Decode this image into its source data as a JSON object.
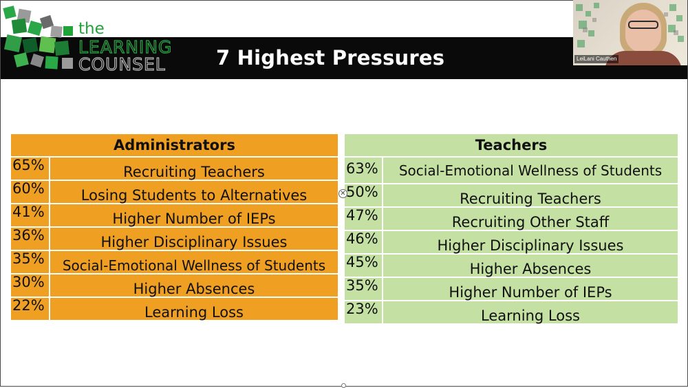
{
  "slide": {
    "title": "7 Highest Pressures"
  },
  "logo": {
    "line1": "the",
    "line2": "LEARNING",
    "line3": "COUNSEL"
  },
  "webcam": {
    "participant_name": "LeiLani Cauthen"
  },
  "administrators": {
    "header": "Administrators",
    "rows": [
      {
        "pct": "65%",
        "label": "Recruiting Teachers"
      },
      {
        "pct": "60%",
        "label": "Losing Students to Alternatives"
      },
      {
        "pct": "41%",
        "label": "Higher Number of IEPs"
      },
      {
        "pct": "36%",
        "label": "Higher Disciplinary Issues"
      },
      {
        "pct": "35%",
        "label": "Social-Emotional Wellness of Students"
      },
      {
        "pct": "30%",
        "label": "Higher Absences"
      },
      {
        "pct": "22%",
        "label": "Learning Loss"
      }
    ]
  },
  "teachers": {
    "header": "Teachers",
    "rows": [
      {
        "pct": "63%",
        "label": "Social-Emotional Wellness of Students"
      },
      {
        "pct": "50%",
        "label": "Recruiting Teachers"
      },
      {
        "pct": "47%",
        "label": "Recruiting Other Staff"
      },
      {
        "pct": "46%",
        "label": "Higher Disciplinary Issues"
      },
      {
        "pct": "45%",
        "label": "Higher Absences"
      },
      {
        "pct": "35%",
        "label": "Higher Number of IEPs"
      },
      {
        "pct": "23%",
        "label": "Learning Loss"
      }
    ]
  },
  "colors": {
    "admin_fill": "#ef9f22",
    "teacher_fill": "#c4e0a3",
    "header_band": "#0a0a0a",
    "logo_green": "#22a33a"
  }
}
